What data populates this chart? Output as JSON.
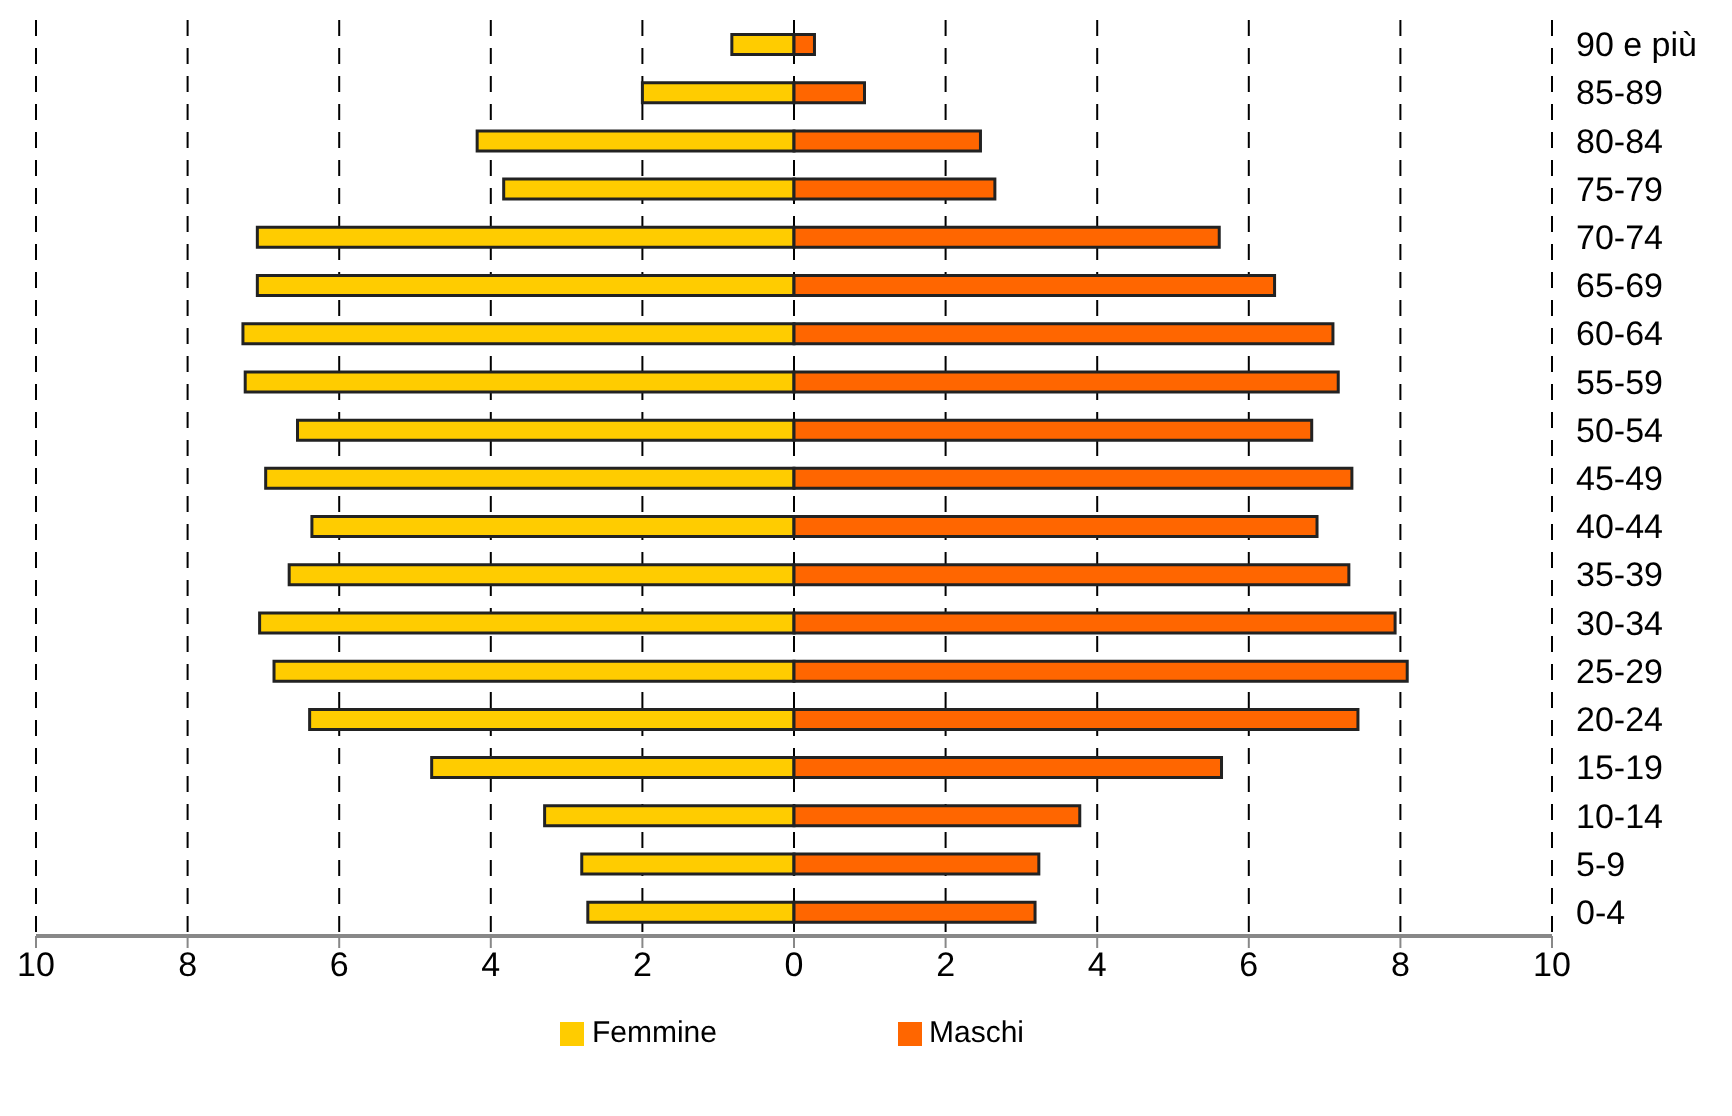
{
  "chart_data": {
    "type": "bar",
    "orientation": "horizontal",
    "stacked": true,
    "categories": [
      "90 e più",
      "85-89",
      "80-84",
      "75-79",
      "70-74",
      "65-69",
      "60-64",
      "55-59",
      "50-54",
      "45-49",
      "40-44",
      "35-39",
      "30-34",
      "25-29",
      "20-24",
      "15-19",
      "10-14",
      "5-9",
      "0-4"
    ],
    "series": [
      {
        "name": "Femmine",
        "color": "#ffcc00",
        "values": [
          -0.82,
          -2.0,
          -4.18,
          -3.83,
          -7.08,
          -7.08,
          -7.27,
          -7.24,
          -6.55,
          -6.97,
          -6.36,
          -6.66,
          -7.05,
          -6.86,
          -6.39,
          -4.78,
          -3.29,
          -2.8,
          -2.72
        ]
      },
      {
        "name": "Maschi",
        "color": "#ff6600",
        "values": [
          0.27,
          0.93,
          2.46,
          2.65,
          5.61,
          6.34,
          7.11,
          7.18,
          6.83,
          7.36,
          6.9,
          7.32,
          7.93,
          8.09,
          7.44,
          5.64,
          3.77,
          3.23,
          3.18
        ]
      }
    ],
    "xlim": [
      -10,
      10
    ],
    "xticks": [
      {
        "value": -10,
        "label": "10"
      },
      {
        "value": -8,
        "label": "8"
      },
      {
        "value": -6,
        "label": "6"
      },
      {
        "value": -4,
        "label": "4"
      },
      {
        "value": -2,
        "label": "2"
      },
      0,
      2,
      4,
      6,
      8,
      10
    ],
    "grid": "x",
    "legend": "bottom"
  }
}
